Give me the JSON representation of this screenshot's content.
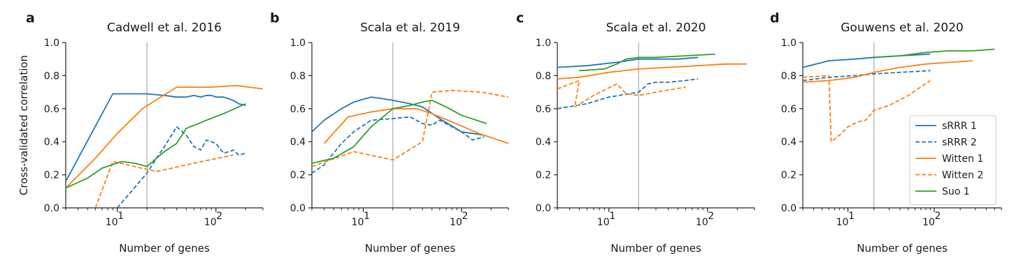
{
  "legend": {
    "placement": "lower-right of panel d",
    "entries": [
      {
        "name": "sRRR 1",
        "color": "#1f77b4",
        "dash": "solid"
      },
      {
        "name": "sRRR 2",
        "color": "#1f77b4",
        "dash": "dashed"
      },
      {
        "name": "Witten 1",
        "color": "#ff7f0e",
        "dash": "solid"
      },
      {
        "name": "Witten 2",
        "color": "#ff7f0e",
        "dash": "dashed"
      },
      {
        "name": "Suo 1",
        "color": "#2ca02c",
        "dash": "solid"
      }
    ]
  },
  "chart_data": [
    {
      "panel": "a",
      "type": "line",
      "title": "Cadwell et al. 2016",
      "xlabel": "Number of genes",
      "ylabel": "Cross-validated correlation",
      "xscale": "log",
      "xlim": [
        3,
        300
      ],
      "ylim": [
        0,
        1
      ],
      "yticks": [
        "0.0",
        "0.2",
        "0.4",
        "0.6",
        "0.8",
        "1.0"
      ],
      "vline": 20,
      "series": [
        {
          "name": "sRRR 1",
          "x": [
            3,
            9,
            20,
            30,
            40,
            50,
            60,
            70,
            80,
            90,
            100,
            120,
            150,
            170,
            200
          ],
          "y": [
            0.16,
            0.69,
            0.69,
            0.68,
            0.67,
            0.67,
            0.68,
            0.67,
            0.68,
            0.68,
            0.67,
            0.67,
            0.65,
            0.63,
            0.62
          ]
        },
        {
          "name": "sRRR 2",
          "x": [
            10,
            20,
            25,
            30,
            40,
            50,
            60,
            70,
            80,
            90,
            100,
            120,
            150,
            170,
            200
          ],
          "y": [
            0.0,
            0.21,
            0.3,
            0.37,
            0.49,
            0.44,
            0.37,
            0.35,
            0.41,
            0.4,
            0.39,
            0.33,
            0.35,
            0.32,
            0.33
          ]
        },
        {
          "name": "Witten 1",
          "x": [
            3,
            6,
            10,
            18,
            40,
            90,
            160,
            300
          ],
          "y": [
            0.12,
            0.3,
            0.45,
            0.6,
            0.73,
            0.73,
            0.74,
            0.72
          ]
        },
        {
          "name": "Witten 2",
          "x": [
            6,
            9,
            25,
            60,
            150
          ],
          "y": [
            0.0,
            0.28,
            0.22,
            0.27,
            0.32
          ]
        },
        {
          "name": "Suo 1",
          "x": [
            3,
            5,
            7,
            11,
            15,
            20,
            25,
            30,
            40,
            50,
            80,
            120,
            200
          ],
          "y": [
            0.12,
            0.18,
            0.24,
            0.28,
            0.27,
            0.25,
            0.3,
            0.34,
            0.39,
            0.48,
            0.53,
            0.57,
            0.63
          ]
        }
      ]
    },
    {
      "panel": "b",
      "type": "line",
      "title": "Scala et al. 2019",
      "xlabel": "Number of genes",
      "ylabel": "",
      "xscale": "log",
      "xlim": [
        3,
        300
      ],
      "ylim": [
        0,
        1
      ],
      "yticks": [
        "0.0",
        "0.2",
        "0.4",
        "0.6",
        "0.8",
        "1.0"
      ],
      "vline": 20,
      "series": [
        {
          "name": "sRRR 1",
          "x": [
            3,
            4,
            6,
            8,
            12,
            16,
            20,
            30,
            40,
            60,
            100,
            170
          ],
          "y": [
            0.46,
            0.53,
            0.6,
            0.64,
            0.67,
            0.66,
            0.65,
            0.63,
            0.61,
            0.54,
            0.46,
            0.44
          ]
        },
        {
          "name": "sRRR 2",
          "x": [
            3,
            4,
            6,
            8,
            12,
            20,
            30,
            40,
            50,
            60,
            100,
            130,
            170
          ],
          "y": [
            0.21,
            0.26,
            0.39,
            0.46,
            0.53,
            0.54,
            0.55,
            0.51,
            0.5,
            0.53,
            0.46,
            0.41,
            0.43
          ]
        },
        {
          "name": "Witten 1",
          "x": [
            4,
            7,
            12,
            20,
            35,
            50,
            80,
            150,
            300
          ],
          "y": [
            0.39,
            0.55,
            0.58,
            0.6,
            0.6,
            0.57,
            0.52,
            0.45,
            0.39
          ]
        },
        {
          "name": "Witten 2",
          "x": [
            3,
            8,
            20,
            40,
            50,
            80,
            160,
            300
          ],
          "y": [
            0.25,
            0.34,
            0.29,
            0.4,
            0.7,
            0.71,
            0.7,
            0.67
          ]
        },
        {
          "name": "Suo 1",
          "x": [
            3,
            5,
            8,
            12,
            20,
            30,
            40,
            50,
            70,
            100,
            180
          ],
          "y": [
            0.27,
            0.3,
            0.37,
            0.49,
            0.6,
            0.62,
            0.64,
            0.65,
            0.61,
            0.56,
            0.51
          ]
        }
      ]
    },
    {
      "panel": "c",
      "type": "line",
      "title": "Scala et al. 2020",
      "xlabel": "Number of genes",
      "ylabel": "",
      "xscale": "log",
      "xlim": [
        3,
        300
      ],
      "ylim": [
        0,
        1
      ],
      "yticks": [
        "0.0",
        "0.2",
        "0.4",
        "0.6",
        "0.8",
        "1.0"
      ],
      "vline": 20,
      "series": [
        {
          "name": "sRRR 1",
          "x": [
            3,
            6,
            12,
            20,
            30,
            50,
            80
          ],
          "y": [
            0.85,
            0.86,
            0.88,
            0.9,
            0.9,
            0.9,
            0.91
          ]
        },
        {
          "name": "sRRR 2",
          "x": [
            3,
            6,
            10,
            20,
            25,
            30,
            40,
            60,
            80
          ],
          "y": [
            0.6,
            0.63,
            0.67,
            0.7,
            0.75,
            0.76,
            0.76,
            0.77,
            0.78
          ]
        },
        {
          "name": "Witten 1",
          "x": [
            3,
            5,
            10,
            20,
            40,
            80,
            150,
            250
          ],
          "y": [
            0.78,
            0.79,
            0.82,
            0.84,
            0.85,
            0.86,
            0.87,
            0.87
          ]
        },
        {
          "name": "Witten 2",
          "x": [
            3,
            5,
            4.5,
            7,
            12,
            15,
            20,
            30,
            60
          ],
          "y": [
            0.72,
            0.77,
            0.61,
            0.68,
            0.75,
            0.69,
            0.68,
            0.7,
            0.73
          ]
        },
        {
          "name": "Suo 1",
          "x": [
            5,
            9,
            12,
            15,
            20,
            30,
            60,
            120
          ],
          "y": [
            0.83,
            0.84,
            0.87,
            0.9,
            0.91,
            0.91,
            0.92,
            0.93
          ]
        }
      ]
    },
    {
      "panel": "d",
      "type": "line",
      "title": "Gouwens et al. 2020",
      "xlabel": "Number of genes",
      "ylabel": "",
      "xscale": "log",
      "xlim": [
        3,
        600
      ],
      "ylim": [
        0,
        1
      ],
      "yticks": [
        "0.0",
        "0.2",
        "0.4",
        "0.6",
        "0.8",
        "1.0"
      ],
      "vline": 20,
      "series": [
        {
          "name": "sRRR 1",
          "x": [
            3,
            6,
            12,
            20,
            40,
            90
          ],
          "y": [
            0.85,
            0.89,
            0.9,
            0.91,
            0.92,
            0.93
          ]
        },
        {
          "name": "sRRR 2",
          "x": [
            3,
            6,
            12,
            20,
            40,
            90
          ],
          "y": [
            0.77,
            0.79,
            0.8,
            0.81,
            0.82,
            0.83
          ]
        },
        {
          "name": "Witten 1",
          "x": [
            3,
            6,
            12,
            20,
            40,
            80,
            150,
            280
          ],
          "y": [
            0.76,
            0.77,
            0.79,
            0.82,
            0.85,
            0.87,
            0.88,
            0.89
          ]
        },
        {
          "name": "Witten 2",
          "x": [
            3,
            6,
            6.4,
            8,
            10,
            13,
            16,
            20,
            30,
            50,
            90
          ],
          "y": [
            0.79,
            0.8,
            0.4,
            0.44,
            0.49,
            0.52,
            0.53,
            0.59,
            0.62,
            0.68,
            0.77
          ]
        },
        {
          "name": "Suo 1",
          "x": [
            20,
            40,
            80,
            150,
            280,
            500
          ],
          "y": [
            0.91,
            0.92,
            0.94,
            0.95,
            0.95,
            0.96
          ]
        }
      ]
    }
  ]
}
